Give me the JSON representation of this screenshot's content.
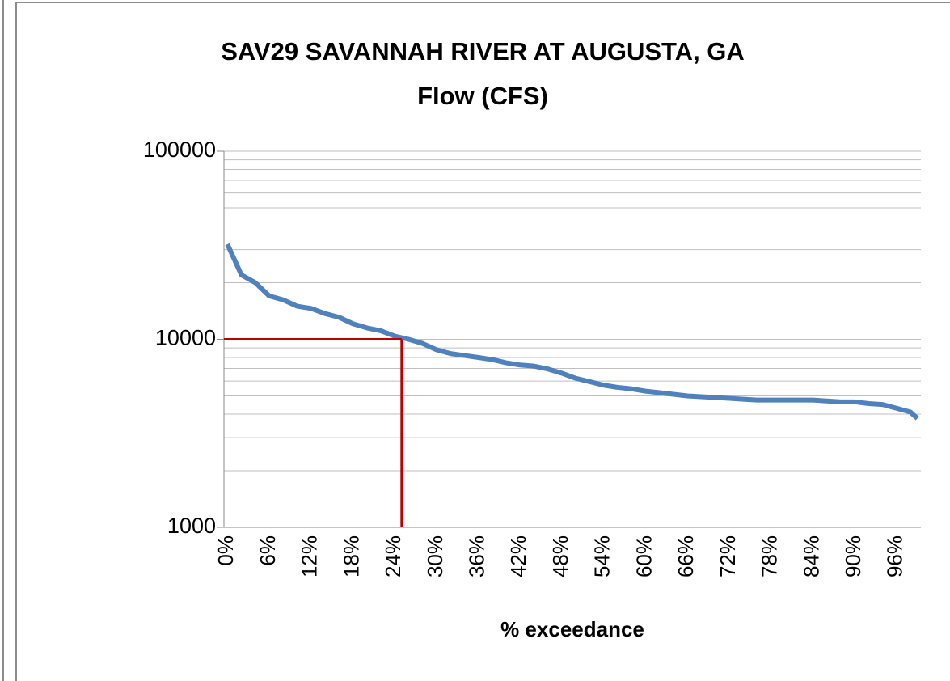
{
  "chart_data": {
    "type": "line",
    "title": "SAV29 SAVANNAH RIVER AT AUGUSTA, GA",
    "subtitle": "Flow (CFS)",
    "x_label": "% exceedance",
    "x": [
      0,
      2,
      4,
      6,
      8,
      10,
      12,
      14,
      16,
      18,
      20,
      22,
      24,
      26,
      28,
      30,
      32,
      34,
      36,
      38,
      40,
      42,
      44,
      46,
      48,
      50,
      52,
      54,
      56,
      58,
      60,
      62,
      64,
      66,
      68,
      70,
      72,
      74,
      76,
      78,
      80,
      82,
      84,
      86,
      88,
      90,
      92,
      94,
      96,
      98,
      99
    ],
    "series": [
      {
        "color": "#4f81bd",
        "values": [
          32000,
          22000,
          20000,
          17000,
          16200,
          15000,
          14600,
          13700,
          13100,
          12100,
          11500,
          11100,
          10400,
          10000,
          9500,
          8800,
          8400,
          8200,
          8000,
          7800,
          7500,
          7300,
          7200,
          6950,
          6600,
          6200,
          5950,
          5700,
          5550,
          5450,
          5300,
          5200,
          5100,
          5000,
          4950,
          4900,
          4850,
          4800,
          4750,
          4750,
          4750,
          4750,
          4750,
          4700,
          4650,
          4650,
          4550,
          4500,
          4300,
          4100,
          3800
        ]
      }
    ],
    "xlim": [
      -0.5,
      99.5
    ],
    "xticks": [
      {
        "value": 0,
        "label": "0%"
      },
      {
        "value": 6,
        "label": "6%"
      },
      {
        "value": 12,
        "label": "12%"
      },
      {
        "value": 18,
        "label": "18%"
      },
      {
        "value": 24,
        "label": "24%"
      },
      {
        "value": 30,
        "label": "30%"
      },
      {
        "value": 36,
        "label": "36%"
      },
      {
        "value": 42,
        "label": "42%"
      },
      {
        "value": 48,
        "label": "48%"
      },
      {
        "value": 54,
        "label": "54%"
      },
      {
        "value": 60,
        "label": "60%"
      },
      {
        "value": 66,
        "label": "66%"
      },
      {
        "value": 72,
        "label": "72%"
      },
      {
        "value": 78,
        "label": "78%"
      },
      {
        "value": 84,
        "label": "84%"
      },
      {
        "value": 90,
        "label": "90%"
      },
      {
        "value": 96,
        "label": "96%"
      }
    ],
    "ylim": [
      1000,
      100000
    ],
    "yticks": [
      1000,
      10000,
      100000
    ],
    "yminorticks": [
      2000,
      3000,
      4000,
      5000,
      6000,
      7000,
      8000,
      9000,
      20000,
      30000,
      40000,
      50000,
      60000,
      70000,
      80000,
      90000
    ],
    "log_y": true,
    "grid": true,
    "reference_lines": {
      "x": 25,
      "y": 10000,
      "color": "#c00000"
    }
  }
}
